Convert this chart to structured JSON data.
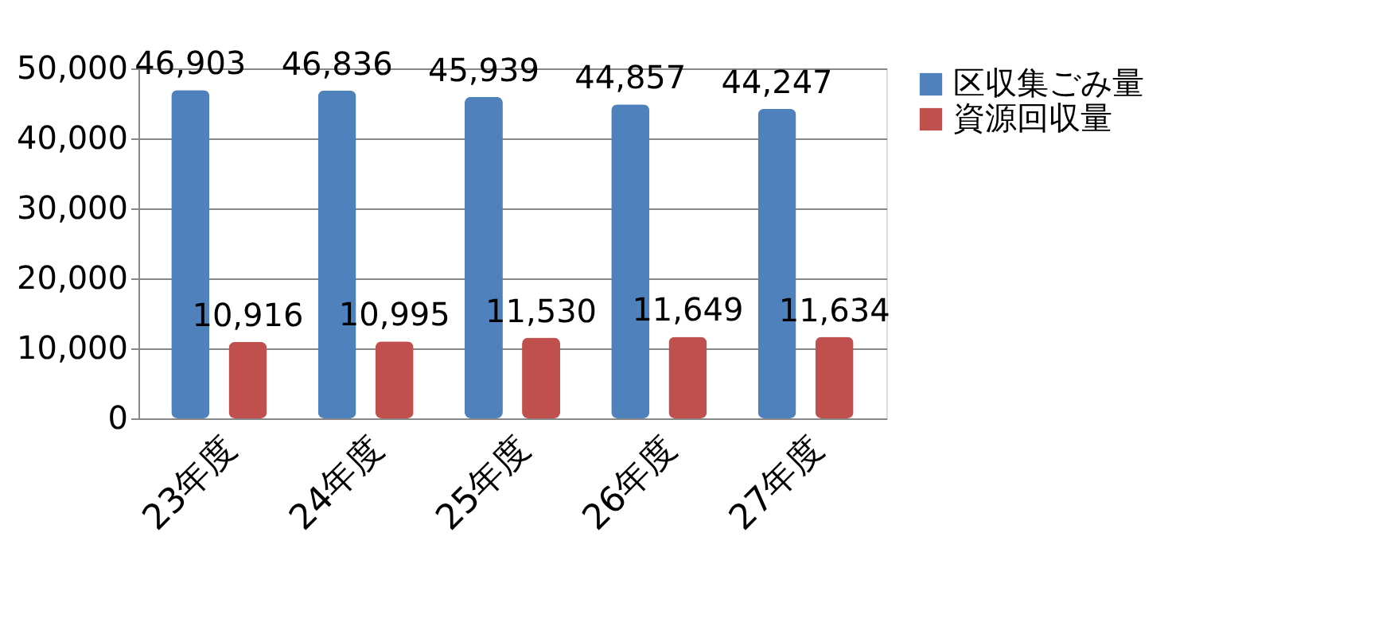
{
  "chart_data": {
    "type": "bar",
    "categories": [
      "23年度",
      "24年度",
      "25年度",
      "26年度",
      "27年度"
    ],
    "series": [
      {
        "name": "区収集ごみ量",
        "color": "#4f81bd",
        "values": [
          46903,
          46836,
          45939,
          44857,
          44247
        ],
        "value_labels": [
          "46,903",
          "46,836",
          "45,939",
          "44,857",
          "44,247"
        ]
      },
      {
        "name": "資源回収量",
        "color": "#c0504d",
        "values": [
          10916,
          10995,
          11530,
          11649,
          11634
        ],
        "value_labels": [
          "10,916",
          "10,995",
          "11,530",
          "11,649",
          "11,634"
        ]
      }
    ],
    "ylim": [
      0,
      50000
    ],
    "yticks": [
      0,
      {
        "value": 10000,
        "label": "10,000"
      },
      {
        "value": 20000,
        "label": "20,000"
      },
      {
        "value": 30000,
        "label": "30,000"
      },
      {
        "value": 40000,
        "label": "40,000"
      },
      {
        "value": 50000,
        "label": "50,000"
      }
    ],
    "grid": "y",
    "legend": "right"
  }
}
